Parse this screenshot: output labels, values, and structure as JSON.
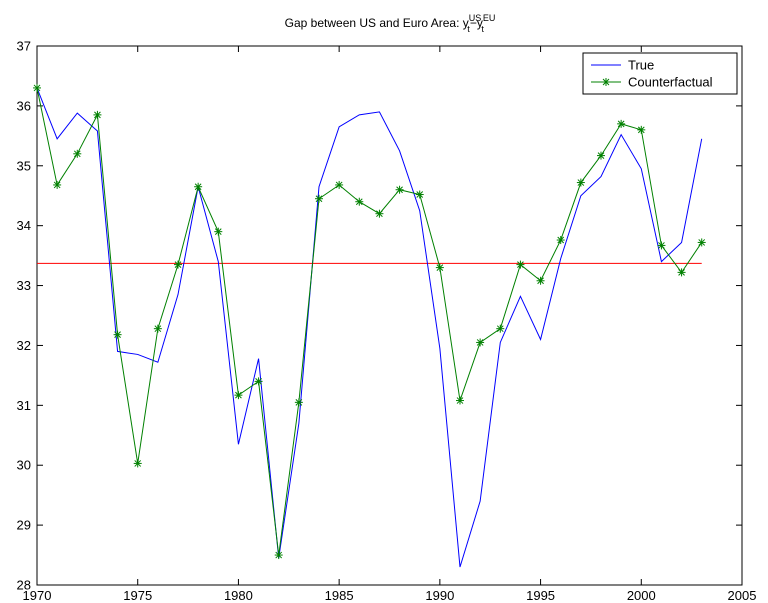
{
  "chart_data": {
    "type": "line",
    "title": "Gap between US and Euro Area: ",
    "title_math": {
      "y1": "y",
      "sub1": "t",
      "sup1": "US",
      "minus": "−",
      "y2": "y",
      "sub2": "t",
      "sup2": "EU"
    },
    "xlabel": "",
    "ylabel": "",
    "xlim": [
      1970,
      2005
    ],
    "ylim": [
      28,
      37
    ],
    "xticks": [
      1970,
      1975,
      1980,
      1985,
      1990,
      1995,
      2000,
      2005
    ],
    "yticks": [
      28,
      29,
      30,
      31,
      32,
      33,
      34,
      35,
      36,
      37
    ],
    "legend_position": "top-right",
    "grid": false,
    "x": [
      1970,
      1971,
      1972,
      1973,
      1974,
      1975,
      1976,
      1977,
      1978,
      1979,
      1980,
      1981,
      1982,
      1983,
      1984,
      1985,
      1986,
      1987,
      1988,
      1989,
      1990,
      1991,
      1992,
      1993,
      1994,
      1995,
      1996,
      1997,
      1998,
      1999,
      2000,
      2001,
      2002,
      2003
    ],
    "series": [
      {
        "name": "True",
        "color": "#0000ff",
        "marker": "none",
        "values": [
          36.3,
          35.45,
          35.88,
          35.58,
          31.9,
          31.85,
          31.72,
          32.85,
          34.65,
          33.4,
          30.35,
          31.78,
          28.45,
          30.7,
          34.65,
          35.65,
          35.85,
          35.9,
          35.25,
          34.25,
          31.95,
          28.3,
          29.4,
          32.05,
          32.82,
          32.1,
          33.45,
          34.5,
          34.82,
          35.52,
          34.95,
          33.4,
          33.72,
          35.45
        ]
      },
      {
        "name": "Counterfactual",
        "color": "#008000",
        "marker": "asterisk",
        "values": [
          36.3,
          34.68,
          35.2,
          35.85,
          32.18,
          30.03,
          32.28,
          33.35,
          34.65,
          33.9,
          31.17,
          31.4,
          28.5,
          31.05,
          34.45,
          34.68,
          34.4,
          34.2,
          34.6,
          34.52,
          33.3,
          31.08,
          32.05,
          32.28,
          33.35,
          33.08,
          33.76,
          34.72,
          35.17,
          35.7,
          35.6,
          33.67,
          33.22,
          33.72
        ]
      }
    ],
    "reference_line": {
      "value": 33.37,
      "color": "#ff0000"
    }
  }
}
